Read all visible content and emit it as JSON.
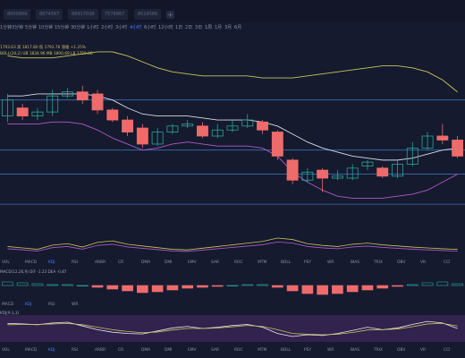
{
  "symbol_tabs": [
    "8000889",
    "8874587",
    "8891760B",
    "7578867",
    "8519586"
  ],
  "add_tab_label": "+",
  "intervals": [
    "1分钟",
    "3分钟",
    "5分钟",
    "10分钟",
    "15分钟",
    "30分钟",
    "1小时",
    "2小时",
    "3小时",
    "4小时",
    "6小时",
    "12小时",
    "1日",
    "2日",
    "3日",
    "1周",
    "1月",
    "3月",
    "6月"
  ],
  "active_interval": "4小时",
  "info_line1": "1793.63  高 1817.80  低 1793.76  涨幅 +1.25%",
  "info_line2": "BOLL(20,2)  UB 1834.96  MB 1800.69  LB 1759.06",
  "indicator_tabs": [
    "VOL",
    "MACD",
    "KDJ",
    "RSI",
    "ARBR",
    "CR",
    "DMA",
    "DMI",
    "EMV",
    "SAR",
    "ROC",
    "MTM",
    "BOLL",
    "PSY",
    "WR",
    "BIAS",
    "TRIX",
    "OBV",
    "VR",
    "CCI"
  ],
  "active_indicator": "KDJ",
  "indicator_tabs_2": [
    "MACD",
    "KDJ",
    "RSI",
    "WR"
  ],
  "active_indicator_2": "KDJ",
  "macd_title": "MACD(12,26,9)  DIF -1.23  DEA -0.87",
  "kdj_title": "KDJ(9,3,3)",
  "colors": {
    "up": "#26a69a",
    "down": "#ef6b6b",
    "boll_upper": "#c8c45a",
    "boll_mid": "#d7dbe6",
    "boll_lower": "#b05ac8",
    "level_line": "#3a6fb5",
    "macd_fill": "#4a2a6a"
  },
  "chart_data": {
    "type": "candlestick",
    "candles": [
      {
        "o": 60,
        "c": 68,
        "h": 71,
        "l": 57
      },
      {
        "o": 64,
        "c": 60,
        "h": 66,
        "l": 58
      },
      {
        "o": 60,
        "c": 62,
        "h": 64,
        "l": 58
      },
      {
        "o": 62,
        "c": 70,
        "h": 73,
        "l": 60
      },
      {
        "o": 70,
        "c": 72,
        "h": 74,
        "l": 69
      },
      {
        "o": 72,
        "c": 68,
        "h": 75,
        "l": 66
      },
      {
        "o": 71,
        "c": 63,
        "h": 73,
        "l": 61
      },
      {
        "o": 63,
        "c": 58,
        "h": 64,
        "l": 57
      },
      {
        "o": 58,
        "c": 52,
        "h": 60,
        "l": 50
      },
      {
        "o": 54,
        "c": 46,
        "h": 56,
        "l": 44
      },
      {
        "o": 46,
        "c": 52,
        "h": 54,
        "l": 45
      },
      {
        "o": 52,
        "c": 55,
        "h": 56,
        "l": 51
      },
      {
        "o": 55,
        "c": 56,
        "h": 58,
        "l": 54
      },
      {
        "o": 55,
        "c": 50,
        "h": 57,
        "l": 49
      },
      {
        "o": 50,
        "c": 53,
        "h": 56,
        "l": 49
      },
      {
        "o": 53,
        "c": 55,
        "h": 58,
        "l": 52
      },
      {
        "o": 55,
        "c": 58,
        "h": 61,
        "l": 54
      },
      {
        "o": 57,
        "c": 53,
        "h": 58,
        "l": 51
      },
      {
        "o": 52,
        "c": 40,
        "h": 53,
        "l": 38
      },
      {
        "o": 38,
        "c": 28,
        "h": 39,
        "l": 26
      },
      {
        "o": 28,
        "c": 32,
        "h": 34,
        "l": 27
      },
      {
        "o": 33,
        "c": 29,
        "h": 34,
        "l": 22
      },
      {
        "o": 29,
        "c": 30,
        "h": 33,
        "l": 28
      },
      {
        "o": 29,
        "c": 34,
        "h": 36,
        "l": 28
      },
      {
        "o": 35,
        "c": 37,
        "h": 38,
        "l": 33
      },
      {
        "o": 34,
        "c": 30,
        "h": 35,
        "l": 29
      },
      {
        "o": 30,
        "c": 36,
        "h": 38,
        "l": 29
      },
      {
        "o": 36,
        "c": 44,
        "h": 47,
        "l": 35
      },
      {
        "o": 44,
        "c": 50,
        "h": 52,
        "l": 43
      },
      {
        "o": 50,
        "c": 48,
        "h": 56,
        "l": 46
      },
      {
        "o": 48,
        "c": 40,
        "h": 50,
        "l": 39
      }
    ],
    "boll_upper": [
      90,
      89,
      89,
      89,
      90,
      91,
      92,
      92,
      90,
      87,
      84,
      82,
      81,
      80,
      80,
      80,
      80,
      79,
      79,
      79,
      80,
      81,
      82,
      83,
      84,
      85,
      85,
      84,
      82,
      78,
      72
    ],
    "boll_mid": [
      70,
      70,
      71,
      71,
      71,
      71,
      70,
      68,
      64,
      61,
      60,
      60,
      60,
      59,
      58,
      58,
      58,
      57,
      55,
      51,
      47,
      44,
      42,
      40,
      39,
      38,
      38,
      39,
      41,
      43,
      44
    ],
    "boll_lower": [
      56,
      56,
      56,
      57,
      57,
      56,
      53,
      49,
      46,
      43,
      44,
      46,
      47,
      46,
      45,
      45,
      45,
      44,
      40,
      32,
      27,
      23,
      20,
      19,
      19,
      19,
      20,
      21,
      23,
      27,
      31
    ],
    "levels": [
      68,
      43,
      31,
      16
    ],
    "ylim": [
      0,
      100
    ],
    "volume": [
      40,
      35,
      30,
      45,
      50,
      38,
      55,
      60,
      48,
      42,
      36,
      30,
      28,
      34,
      40,
      46,
      52,
      58,
      70,
      65,
      50,
      44,
      40,
      48,
      52,
      46,
      42,
      38,
      35,
      32,
      30
    ],
    "macd_hist": [
      0.4,
      0.3,
      0.2,
      0.1,
      0.1,
      0.0,
      -0.2,
      -0.4,
      -0.6,
      -0.8,
      -0.7,
      -0.5,
      -0.3,
      -0.2,
      -0.1,
      0.0,
      0.1,
      0.1,
      -0.2,
      -0.6,
      -0.9,
      -1.0,
      -0.9,
      -0.7,
      -0.5,
      -0.3,
      -0.1,
      0.1,
      0.3,
      0.4,
      0.2
    ],
    "kdj_k": [
      70,
      68,
      65,
      72,
      75,
      60,
      45,
      35,
      30,
      28,
      40,
      52,
      58,
      50,
      55,
      62,
      66,
      55,
      30,
      18,
      25,
      22,
      30,
      42,
      55,
      45,
      52,
      66,
      78,
      72,
      50
    ],
    "kdj_d": [
      65,
      66,
      66,
      68,
      70,
      65,
      55,
      45,
      38,
      33,
      36,
      44,
      50,
      50,
      52,
      57,
      62,
      58,
      45,
      30,
      27,
      25,
      27,
      34,
      44,
      45,
      48,
      57,
      68,
      70,
      60
    ]
  }
}
